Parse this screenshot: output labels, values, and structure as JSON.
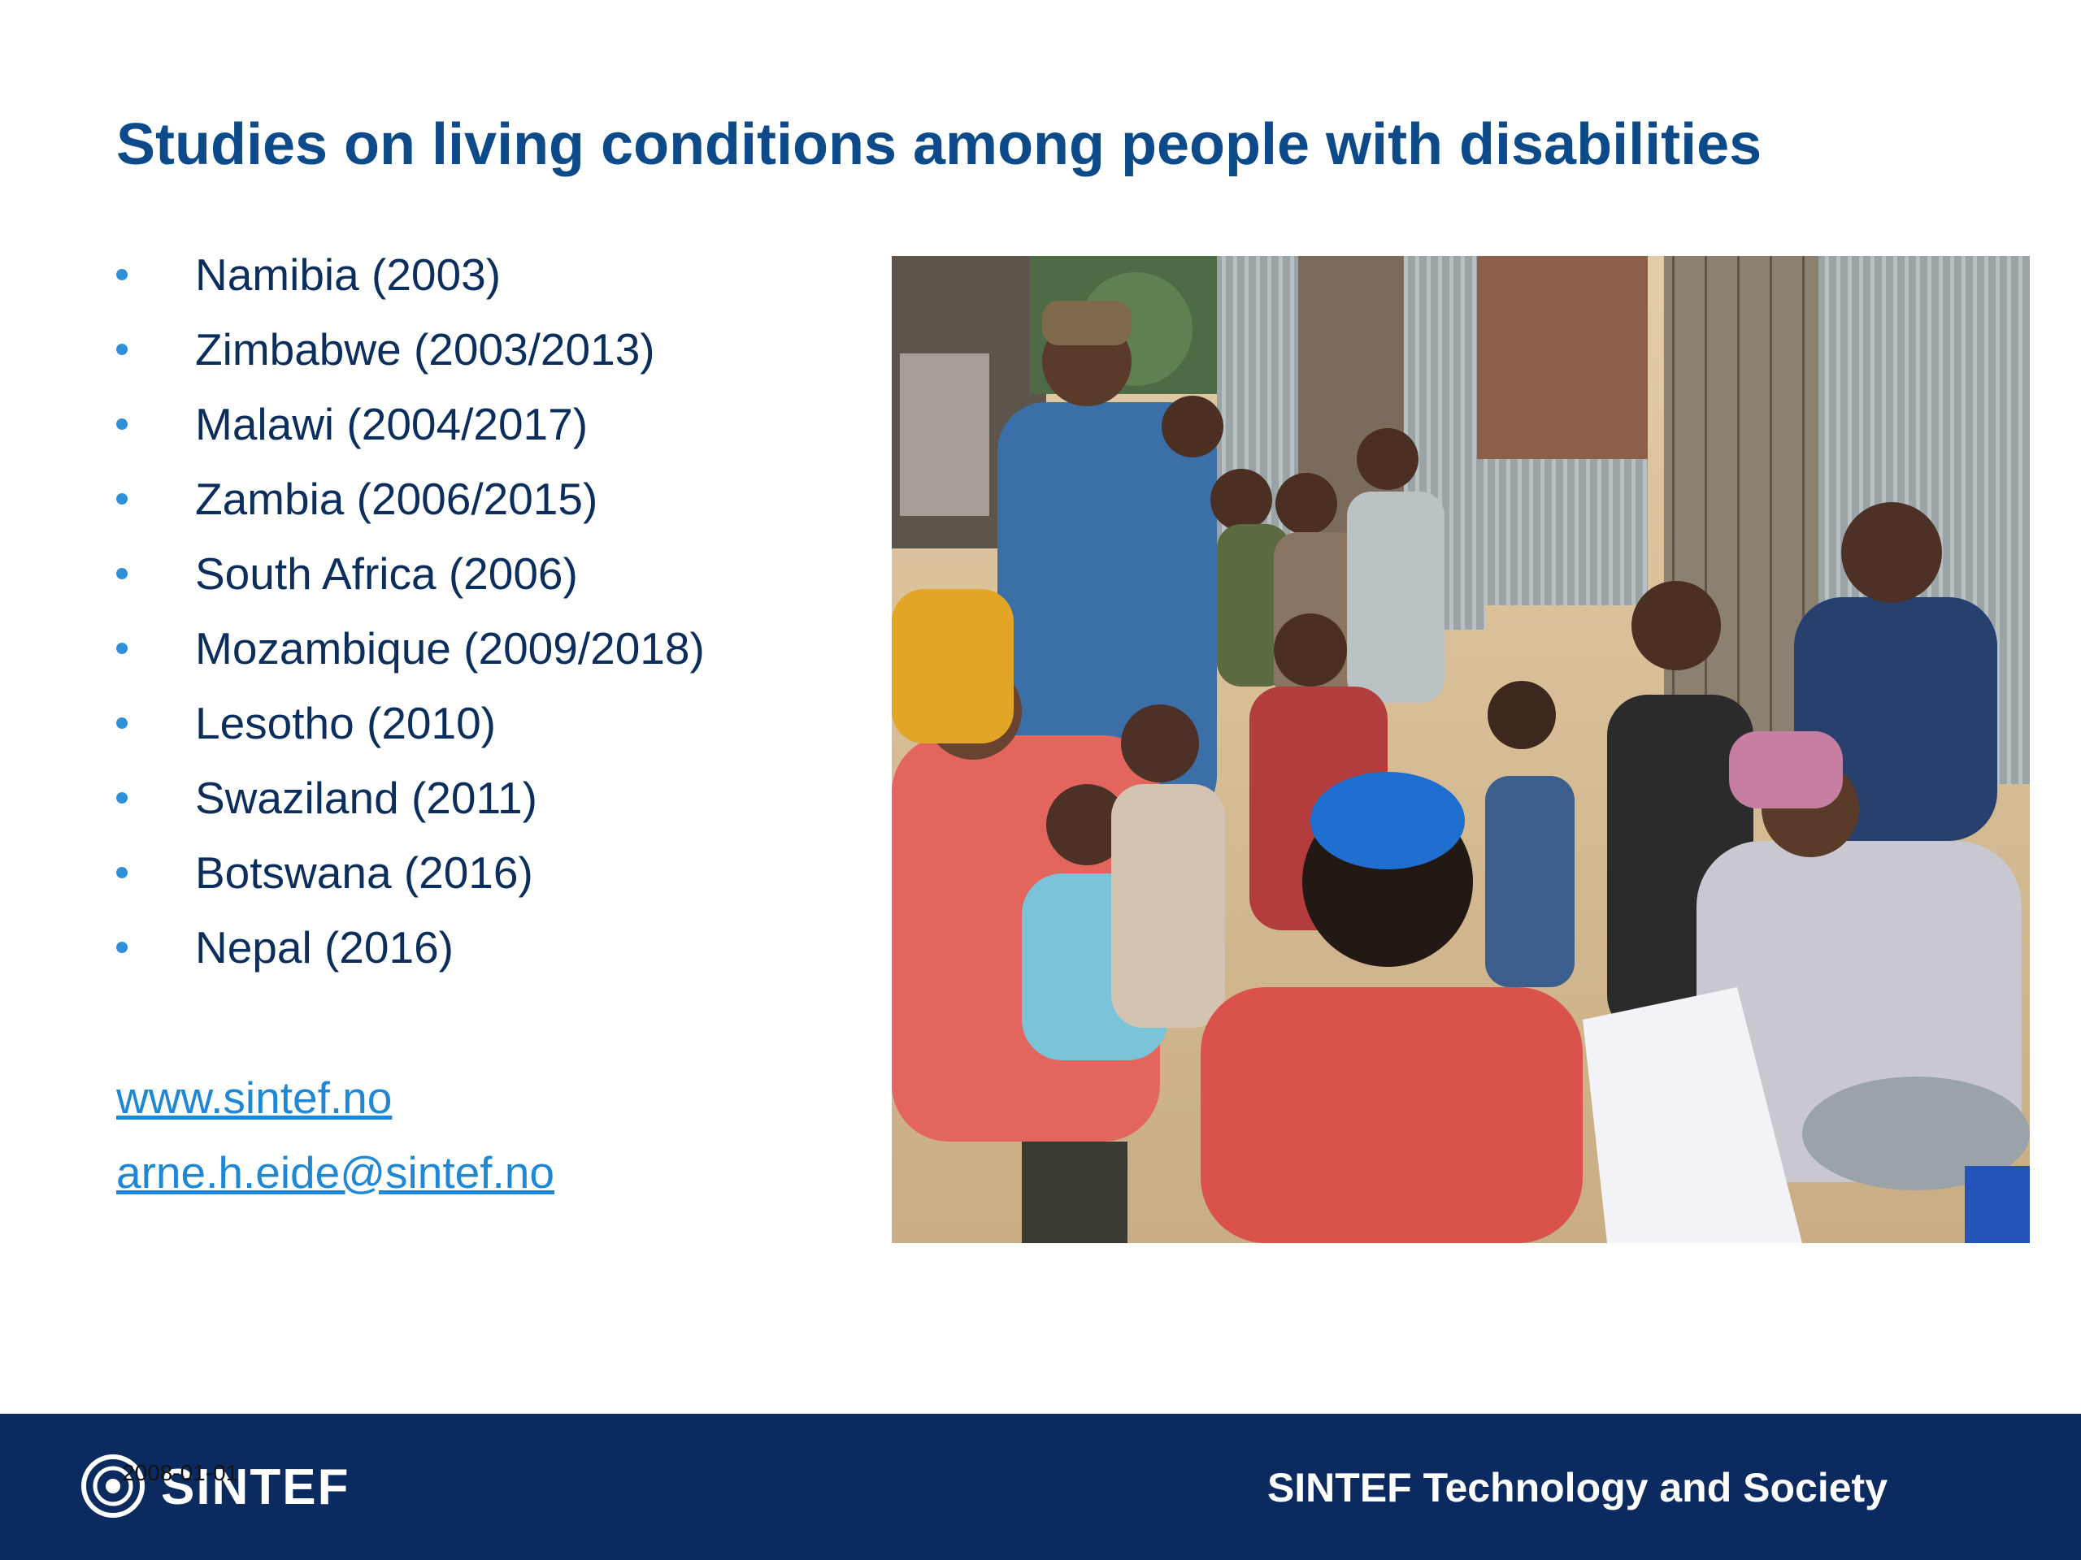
{
  "slide": {
    "title": "Studies on living conditions among people with disabilities",
    "studies": [
      {
        "label": "Namibia (2003)"
      },
      {
        "label": "Zimbabwe (2003/2013)"
      },
      {
        "label": "Malawi (2004/2017)"
      },
      {
        "label": "Zambia (2006/2015)"
      },
      {
        "label": "South Africa (2006)"
      },
      {
        "label": "Mozambique (2009/2018)"
      },
      {
        "label": "Lesotho (2010)"
      },
      {
        "label": "Swaziland (2011)"
      },
      {
        "label": "Botswana (2016)"
      },
      {
        "label": "Nepal (2016)"
      }
    ],
    "links": {
      "website": "www.sintef.no",
      "email": "arne.h.eide@sintef.no"
    }
  },
  "footer": {
    "logo_text": "SINTEF",
    "date": "2008-01-01",
    "organization": "SINTEF Technology and Society"
  },
  "colors": {
    "title": "#0d4a8a",
    "bullet": "#2f8fd8",
    "link": "#1e88d6",
    "footer_bg": "#0b2b60"
  }
}
